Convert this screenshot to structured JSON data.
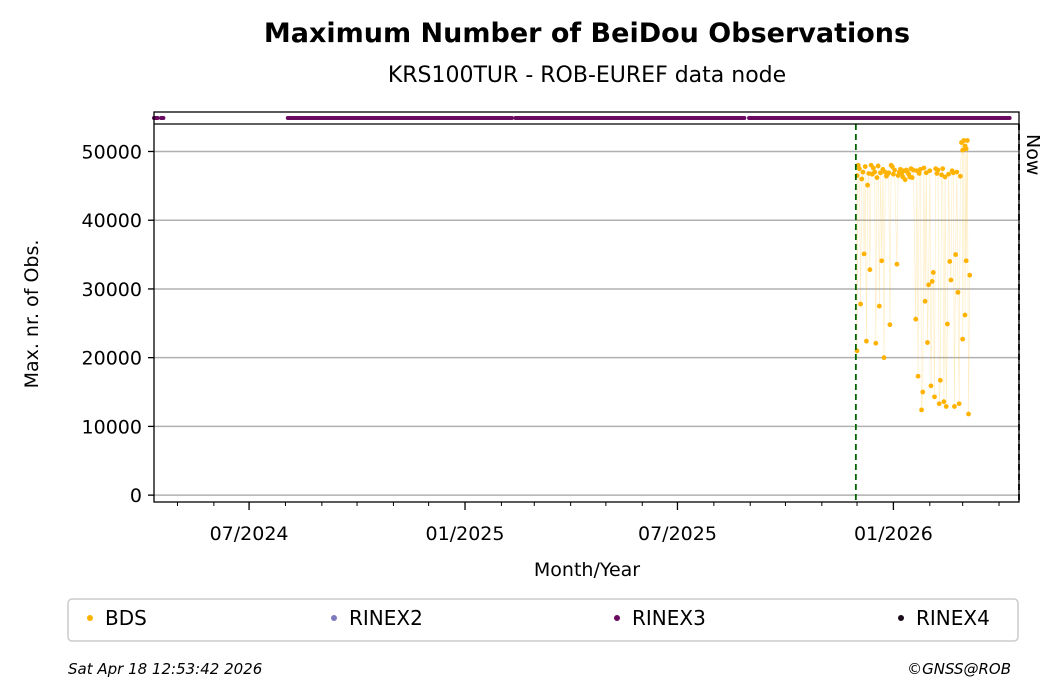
{
  "chart_data": {
    "type": "scatter",
    "title": "Maximum Number of BeiDou Observations",
    "subtitle": "KRS100TUR - ROB-EUREF data node",
    "xlabel": "Month/Year",
    "ylabel": "Max. nr. of Obs.",
    "x_type": "date",
    "xlim": [
      "2024-04-11",
      "2026-04-18"
    ],
    "ylim": [
      -1000,
      54000
    ],
    "y_ticks": [
      0,
      10000,
      20000,
      30000,
      40000,
      50000
    ],
    "x_ticks": [
      {
        "date": "2024-07-01",
        "label": "07/2024"
      },
      {
        "date": "2025-01-01",
        "label": "01/2025"
      },
      {
        "date": "2025-07-01",
        "label": "07/2025"
      },
      {
        "date": "2026-01-01",
        "label": "01/2026"
      }
    ],
    "grid": "horizontal",
    "markers": [
      {
        "date": "2025-11-30",
        "color": "#006400",
        "style": "dashed",
        "label": ""
      },
      {
        "date": "2026-04-18",
        "color": "#000000",
        "style": "dashed",
        "label": "Now"
      }
    ],
    "availability_strip": {
      "series": "RINEX3",
      "ranges": [
        [
          "2024-04-11",
          "2024-04-14"
        ],
        [
          "2024-04-17",
          "2024-04-19"
        ],
        [
          "2024-08-03",
          "2025-02-10"
        ],
        [
          "2025-02-13",
          "2025-08-27"
        ],
        [
          "2025-08-31",
          "2026-04-10"
        ]
      ]
    },
    "series": [
      {
        "name": "BDS",
        "color": "#FFB300",
        "points": [
          [
            "2025-12-01",
            46500
          ],
          [
            "2025-12-01",
            21000
          ],
          [
            "2025-12-02",
            48000
          ],
          [
            "2025-12-03",
            47500
          ],
          [
            "2025-12-04",
            27800
          ],
          [
            "2025-12-05",
            46000
          ],
          [
            "2025-12-06",
            47000
          ],
          [
            "2025-12-07",
            35100
          ],
          [
            "2025-12-08",
            47800
          ],
          [
            "2025-12-09",
            22400
          ],
          [
            "2025-12-10",
            45100
          ],
          [
            "2025-12-11",
            46800
          ],
          [
            "2025-12-12",
            32800
          ],
          [
            "2025-12-13",
            48000
          ],
          [
            "2025-12-14",
            46700
          ],
          [
            "2025-12-15",
            47600
          ],
          [
            "2025-12-16",
            47000
          ],
          [
            "2025-12-17",
            22100
          ],
          [
            "2025-12-18",
            46200
          ],
          [
            "2025-12-19",
            47900
          ],
          [
            "2025-12-20",
            27500
          ],
          [
            "2025-12-21",
            46900
          ],
          [
            "2025-12-22",
            34100
          ],
          [
            "2025-12-23",
            47400
          ],
          [
            "2025-12-24",
            20000
          ],
          [
            "2025-12-25",
            47000
          ],
          [
            "2025-12-26",
            46400
          ],
          [
            "2025-12-27",
            46700
          ],
          [
            "2025-12-28",
            46900
          ],
          [
            "2025-12-29",
            24800
          ],
          [
            "2025-12-30",
            48000
          ],
          [
            "2025-12-31",
            47800
          ],
          [
            "2026-01-01",
            46700
          ],
          [
            "2026-01-02",
            47300
          ],
          [
            "2026-01-04",
            33600
          ],
          [
            "2026-01-05",
            46500
          ],
          [
            "2026-01-06",
            47000
          ],
          [
            "2026-01-07",
            47400
          ],
          [
            "2026-01-08",
            46800
          ],
          [
            "2026-01-09",
            46300
          ],
          [
            "2026-01-10",
            47200
          ],
          [
            "2026-01-11",
            45900
          ],
          [
            "2026-01-12",
            47300
          ],
          [
            "2026-01-13",
            47000
          ],
          [
            "2026-01-14",
            46700
          ],
          [
            "2026-01-15",
            46300
          ],
          [
            "2026-01-16",
            47500
          ],
          [
            "2026-01-17",
            46200
          ],
          [
            "2026-01-18",
            47300
          ],
          [
            "2026-01-20",
            25600
          ],
          [
            "2026-01-21",
            47200
          ],
          [
            "2026-01-22",
            17300
          ],
          [
            "2026-01-23",
            46800
          ],
          [
            "2026-01-24",
            47400
          ],
          [
            "2026-01-25",
            12400
          ],
          [
            "2026-01-26",
            15000
          ],
          [
            "2026-01-27",
            47600
          ],
          [
            "2026-01-28",
            28200
          ],
          [
            "2026-01-29",
            46900
          ],
          [
            "2026-01-30",
            22200
          ],
          [
            "2026-01-31",
            30600
          ],
          [
            "2026-02-01",
            47200
          ],
          [
            "2026-02-02",
            15900
          ],
          [
            "2026-02-03",
            31100
          ],
          [
            "2026-02-04",
            32400
          ],
          [
            "2026-02-05",
            14300
          ],
          [
            "2026-02-06",
            47500
          ],
          [
            "2026-02-07",
            46800
          ],
          [
            "2026-02-08",
            47300
          ],
          [
            "2026-02-09",
            13300
          ],
          [
            "2026-02-10",
            16700
          ],
          [
            "2026-02-11",
            46600
          ],
          [
            "2026-02-12",
            47500
          ],
          [
            "2026-02-13",
            13600
          ],
          [
            "2026-02-14",
            46300
          ],
          [
            "2026-02-15",
            12900
          ],
          [
            "2026-02-16",
            24900
          ],
          [
            "2026-02-17",
            46700
          ],
          [
            "2026-02-18",
            34000
          ],
          [
            "2026-02-19",
            31300
          ],
          [
            "2026-02-20",
            47200
          ],
          [
            "2026-02-21",
            46900
          ],
          [
            "2026-02-22",
            12900
          ],
          [
            "2026-02-23",
            35000
          ],
          [
            "2026-02-24",
            47000
          ],
          [
            "2026-02-25",
            29500
          ],
          [
            "2026-02-26",
            13300
          ],
          [
            "2026-02-27",
            46400
          ],
          [
            "2026-02-28",
            51300
          ],
          [
            "2026-03-01",
            50200
          ],
          [
            "2026-03-01",
            22700
          ],
          [
            "2026-03-02",
            51600
          ],
          [
            "2026-03-03",
            50800
          ],
          [
            "2026-03-03",
            26200
          ],
          [
            "2026-03-04",
            50400
          ],
          [
            "2026-03-04",
            34100
          ],
          [
            "2026-03-05",
            51600
          ],
          [
            "2026-03-06",
            11800
          ],
          [
            "2026-03-07",
            32000
          ]
        ]
      },
      {
        "name": "RINEX2",
        "color": "#7B7BBE",
        "points": []
      },
      {
        "name": "RINEX3",
        "color": "#6A0A60",
        "points": []
      },
      {
        "name": "RINEX4",
        "color": "#1A0A1A",
        "points": []
      }
    ]
  },
  "legend": [
    {
      "label": "BDS",
      "color": "#FFB300"
    },
    {
      "label": "RINEX2",
      "color": "#7B7BBE"
    },
    {
      "label": "RINEX3",
      "color": "#6A0A60"
    },
    {
      "label": "RINEX4",
      "color": "#1A0A1A"
    }
  ],
  "footer": {
    "timestamp": "Sat Apr 18 12:53:42 2026",
    "credit": "©GNSS@ROB"
  }
}
